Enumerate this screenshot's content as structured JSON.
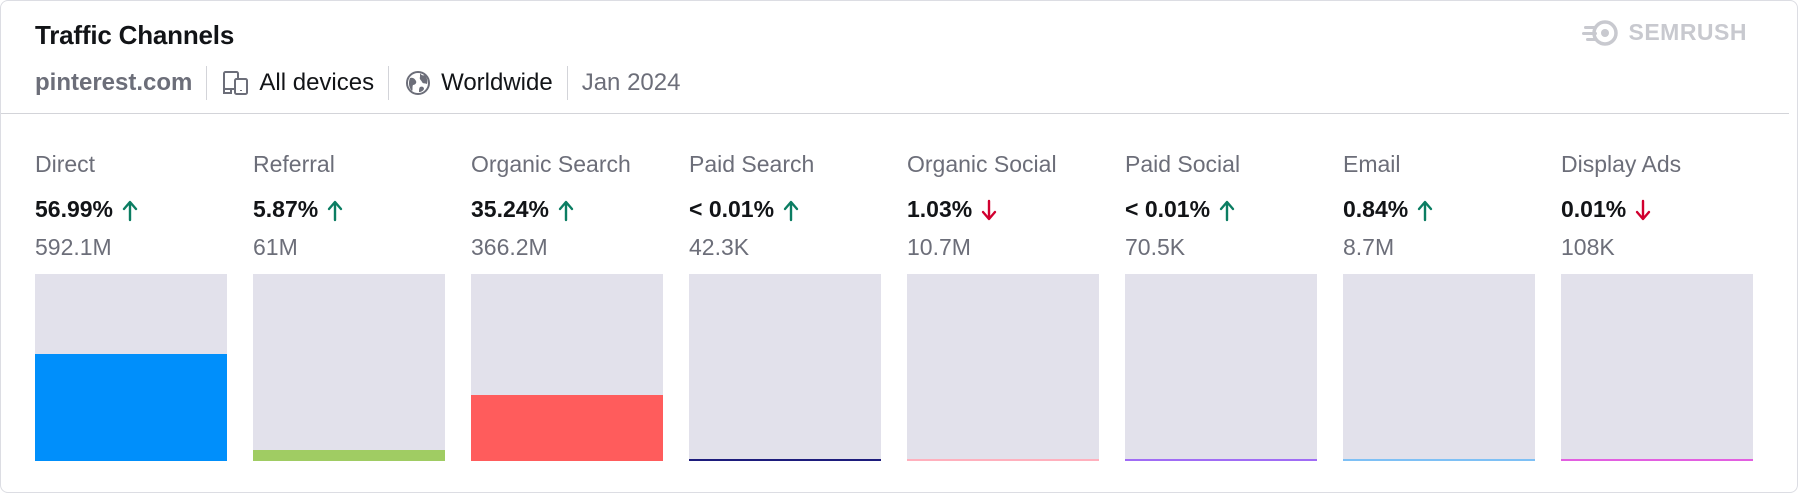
{
  "header": {
    "title": "Traffic Channels",
    "domain": "pinterest.com",
    "device": "All devices",
    "device_icon": "devices-icon",
    "region": "Worldwide",
    "region_icon": "globe-icon",
    "date": "Jan 2024",
    "brand": "SEMRUSH",
    "brand_icon": "semrush-logo-icon"
  },
  "colors": {
    "up": "#0b7d62",
    "down": "#d1002f",
    "track": "#e2e1eb"
  },
  "chart_data": {
    "type": "bar",
    "title": "Traffic Channels",
    "unit": "% of traffic",
    "ylim": [
      0,
      100
    ],
    "categories": [
      "Direct",
      "Referral",
      "Organic Search",
      "Paid Search",
      "Organic Social",
      "Paid Social",
      "Email",
      "Display Ads"
    ],
    "series": [
      {
        "values": [
          56.99,
          5.87,
          35.24,
          0.01,
          1.03,
          0.01,
          0.84,
          0.01
        ],
        "labels": [
          "56.99%",
          "5.87%",
          "35.24%",
          "< 0.01%",
          "1.03%",
          "< 0.01%",
          "0.84%",
          "0.01%"
        ],
        "visits": [
          "592.1M",
          "61M",
          "366.2M",
          "42.3K",
          "10.7M",
          "70.5K",
          "8.7M",
          "108K"
        ],
        "trends": [
          "up",
          "up",
          "up",
          "up",
          "down",
          "up",
          "up",
          "down"
        ],
        "colors": [
          "#008ffb",
          "#a0cc63",
          "#ff5c5c",
          "#1d1c7c",
          "#ffb0bd",
          "#a06cf5",
          "#7ec0f5",
          "#e25fe0"
        ]
      }
    ]
  }
}
